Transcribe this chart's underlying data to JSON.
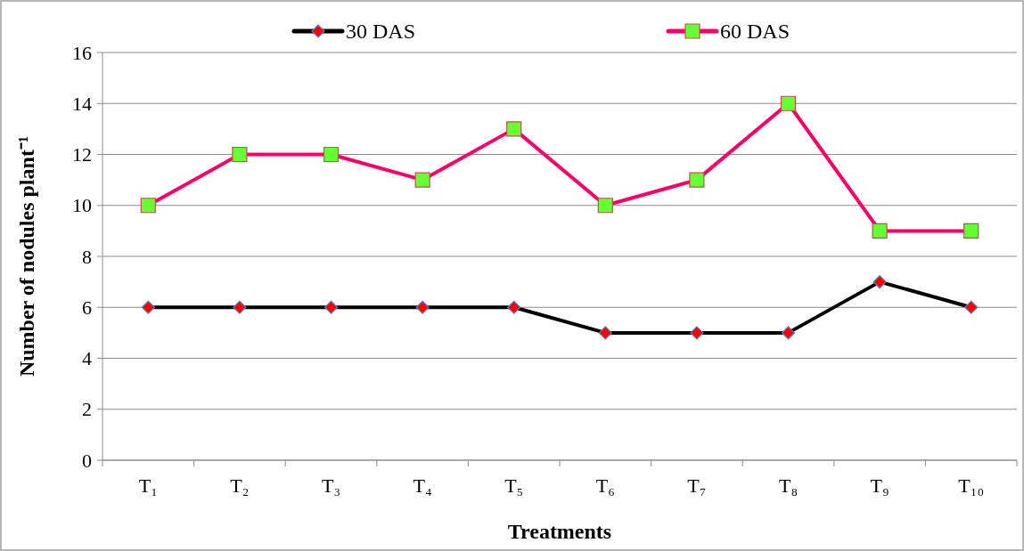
{
  "chart_data": {
    "type": "line",
    "xlabel": "Treatments",
    "ylabel": "Number of nodules plant⁻¹",
    "categories": [
      "T₁",
      "T₂",
      "T₃",
      "T₄",
      "T₅",
      "T₆",
      "T₇",
      "T₈",
      "T₉",
      "T₁₀"
    ],
    "series": [
      {
        "name": "30 DAS",
        "color": "#000000",
        "marker": "diamond",
        "values": [
          6,
          6,
          6,
          6,
          6,
          5,
          5,
          5,
          7,
          6
        ]
      },
      {
        "name": "60 DAS",
        "color": "#ff0066",
        "marker": "square",
        "values": [
          10,
          12,
          12,
          11,
          13,
          10,
          11,
          14,
          9,
          9
        ]
      }
    ],
    "ylim": [
      0,
      16
    ],
    "yticks": [
      0,
      2,
      4,
      6,
      8,
      10,
      12,
      14,
      16
    ],
    "grid": "y",
    "legend": "top",
    "line_style": "solid"
  }
}
